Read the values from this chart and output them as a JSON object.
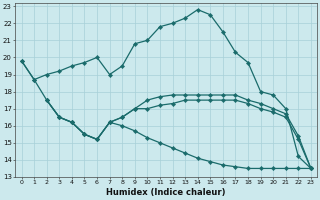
{
  "xlabel": "Humidex (Indice chaleur)",
  "xlim": [
    -0.5,
    23.5
  ],
  "ylim": [
    13,
    23.2
  ],
  "yticks": [
    13,
    14,
    15,
    16,
    17,
    18,
    19,
    20,
    21,
    22,
    23
  ],
  "xticks": [
    0,
    1,
    2,
    3,
    4,
    5,
    6,
    7,
    8,
    9,
    10,
    11,
    12,
    13,
    14,
    15,
    16,
    17,
    18,
    19,
    20,
    21,
    22,
    23
  ],
  "bg_color": "#cce9ed",
  "grid_color": "#a8d0d8",
  "line_color": "#1a6b6b",
  "line1_x": [
    0,
    1,
    2,
    3,
    4,
    5,
    6,
    7,
    8,
    9,
    10,
    11,
    12,
    13,
    14,
    15,
    16,
    17,
    18,
    19,
    20,
    21,
    22,
    23
  ],
  "line1_y": [
    19.8,
    18.7,
    19.0,
    19.2,
    19.5,
    19.7,
    20.0,
    19.0,
    19.5,
    20.8,
    21.0,
    21.8,
    22.0,
    22.3,
    22.8,
    22.5,
    21.5,
    20.3,
    19.7,
    18.0,
    17.8,
    17.0,
    14.2,
    13.5
  ],
  "line2_x": [
    2,
    3,
    4,
    5,
    6,
    7,
    8,
    9,
    10,
    11,
    12,
    13,
    14,
    15,
    16,
    17,
    18,
    19,
    20,
    21,
    22,
    23
  ],
  "line2_y": [
    17.5,
    16.5,
    16.2,
    15.5,
    15.2,
    16.2,
    16.5,
    17.0,
    17.5,
    17.7,
    17.8,
    17.8,
    17.8,
    17.8,
    17.8,
    17.8,
    17.5,
    17.3,
    17.0,
    16.7,
    15.4,
    13.5
  ],
  "line3_x": [
    2,
    3,
    4,
    5,
    6,
    7,
    8,
    9,
    10,
    11,
    12,
    13,
    14,
    15,
    16,
    17,
    18,
    19,
    20,
    21,
    22,
    23
  ],
  "line3_y": [
    17.5,
    16.5,
    16.2,
    15.5,
    15.2,
    16.2,
    16.5,
    17.0,
    17.0,
    17.2,
    17.3,
    17.5,
    17.5,
    17.5,
    17.5,
    17.5,
    17.3,
    17.0,
    16.8,
    16.5,
    15.2,
    13.5
  ],
  "line4_x": [
    0,
    1,
    2,
    3,
    4,
    5,
    6,
    7,
    8,
    9,
    10,
    11,
    12,
    13,
    14,
    15,
    16,
    17,
    18,
    19,
    20,
    21,
    22,
    23
  ],
  "line4_y": [
    19.8,
    18.7,
    17.5,
    16.5,
    16.2,
    15.5,
    15.2,
    16.2,
    16.0,
    15.7,
    15.3,
    15.0,
    14.7,
    14.4,
    14.1,
    13.9,
    13.7,
    13.6,
    13.5,
    13.5,
    13.5,
    13.5,
    13.5,
    13.5
  ]
}
